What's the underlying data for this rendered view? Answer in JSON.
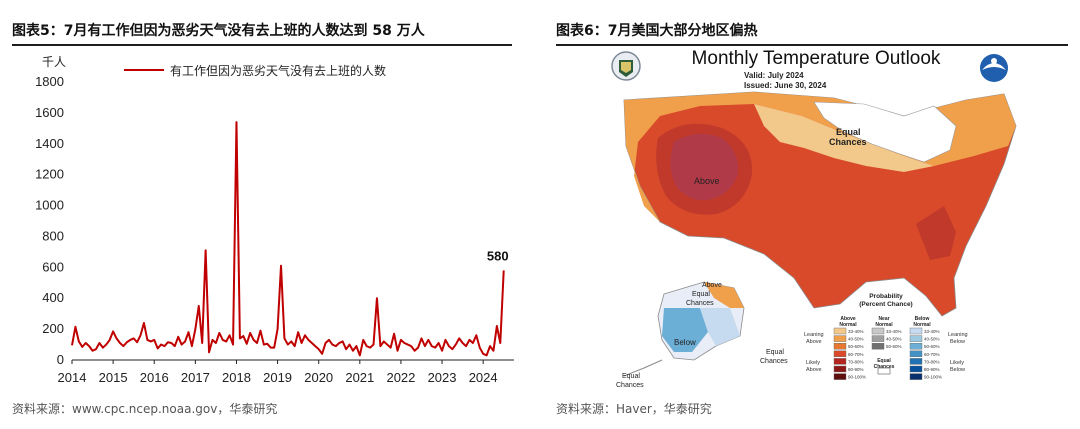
{
  "left": {
    "figure_title": "图表5：7月有工作但因为恶劣天气没有去上班的人数达到 58 万人",
    "source": "资料来源：www.cpc.ncep.noaa.gov，华泰研究"
  },
  "right": {
    "figure_title": "图表6：7月美国大部分地区偏热",
    "source": "资料来源：Haver，华泰研究",
    "map": {
      "title": "Monthly Temperature Outlook",
      "valid": "Valid:  July 2024",
      "issued": "Issued:  June 30, 2024",
      "labels": {
        "above_conus": "Above",
        "equal_chances_ne": "Equal\nChances",
        "above_ak": "Above",
        "equal_chances_ak": "Equal\nChances",
        "below_ak": "Below",
        "equal_chances_ak_sw": "Equal\nChances",
        "equal_chances_aleutian": "Equal\nChances"
      },
      "legend": {
        "title": "Probability\n(Percent Chance)",
        "col_above": "Above\nNormal",
        "col_near": "Near\nNormal",
        "col_below": "Below\nNormal",
        "leaning_above": "Leaning\nAbove",
        "likely_above": "Likely\nAbove",
        "leaning_below": "Leaning\nBelow",
        "likely_below": "Likely\nBelow",
        "equal_chances": "Equal\nChances",
        "above_bins": [
          "33-40%",
          "40-50%",
          "50-60%",
          "60-70%",
          "70-80%",
          "80-90%",
          "90-100%"
        ],
        "near_bins": [
          "33-40%",
          "40-50%",
          "50-60%"
        ],
        "below_bins": [
          "33-40%",
          "40-50%",
          "50-60%",
          "60-70%",
          "70-80%",
          "80-90%",
          "90-100%"
        ],
        "above_colors": [
          "#f2c98a",
          "#f0a04b",
          "#e77731",
          "#d84a2a",
          "#b3261f",
          "#8b1a16",
          "#5e0e0c"
        ],
        "near_colors": [
          "#c8c8c8",
          "#a0a0a0",
          "#707070"
        ],
        "below_colors": [
          "#c6dbef",
          "#9ecae1",
          "#6baed6",
          "#4292c6",
          "#2171b5",
          "#08519c",
          "#08306b"
        ]
      }
    }
  },
  "chart_data": {
    "type": "line",
    "unit_label": "千人",
    "series": [
      {
        "name": "有工作但因为恶劣天气没有去上班的人数",
        "color": "#c00000",
        "points": [
          [
            "2014-01",
            95
          ],
          [
            "2014-02",
            215
          ],
          [
            "2014-03",
            120
          ],
          [
            "2014-04",
            85
          ],
          [
            "2014-05",
            110
          ],
          [
            "2014-06",
            90
          ],
          [
            "2014-07",
            60
          ],
          [
            "2014-08",
            70
          ],
          [
            "2014-09",
            110
          ],
          [
            "2014-10",
            80
          ],
          [
            "2014-11",
            100
          ],
          [
            "2014-12",
            130
          ],
          [
            "2015-01",
            185
          ],
          [
            "2015-02",
            140
          ],
          [
            "2015-03",
            110
          ],
          [
            "2015-04",
            90
          ],
          [
            "2015-05",
            115
          ],
          [
            "2015-06",
            130
          ],
          [
            "2015-07",
            140
          ],
          [
            "2015-08",
            115
          ],
          [
            "2015-09",
            160
          ],
          [
            "2015-10",
            240
          ],
          [
            "2015-11",
            130
          ],
          [
            "2015-12",
            120
          ],
          [
            "2016-01",
            130
          ],
          [
            "2016-02",
            75
          ],
          [
            "2016-03",
            100
          ],
          [
            "2016-04",
            90
          ],
          [
            "2016-05",
            115
          ],
          [
            "2016-06",
            110
          ],
          [
            "2016-07",
            90
          ],
          [
            "2016-08",
            150
          ],
          [
            "2016-09",
            100
          ],
          [
            "2016-10",
            120
          ],
          [
            "2016-11",
            180
          ],
          [
            "2016-12",
            90
          ],
          [
            "2017-01",
            200
          ],
          [
            "2017-02",
            350
          ],
          [
            "2017-03",
            110
          ],
          [
            "2017-04",
            710
          ],
          [
            "2017-05",
            50
          ],
          [
            "2017-06",
            130
          ],
          [
            "2017-07",
            110
          ],
          [
            "2017-08",
            175
          ],
          [
            "2017-09",
            130
          ],
          [
            "2017-10",
            120
          ],
          [
            "2017-11",
            160
          ],
          [
            "2017-12",
            100
          ],
          [
            "2018-01",
            1540
          ],
          [
            "2018-02",
            140
          ],
          [
            "2018-03",
            155
          ],
          [
            "2018-04",
            105
          ],
          [
            "2018-05",
            175
          ],
          [
            "2018-06",
            130
          ],
          [
            "2018-07",
            110
          ],
          [
            "2018-08",
            190
          ],
          [
            "2018-09",
            100
          ],
          [
            "2018-10",
            105
          ],
          [
            "2018-11",
            80
          ],
          [
            "2018-12",
            80
          ],
          [
            "2019-01",
            200
          ],
          [
            "2019-02",
            610
          ],
          [
            "2019-03",
            140
          ],
          [
            "2019-04",
            100
          ],
          [
            "2019-05",
            120
          ],
          [
            "2019-06",
            90
          ],
          [
            "2019-07",
            180
          ],
          [
            "2019-08",
            110
          ],
          [
            "2019-09",
            160
          ],
          [
            "2019-10",
            130
          ],
          [
            "2019-11",
            110
          ],
          [
            "2019-12",
            90
          ],
          [
            "2020-01",
            70
          ],
          [
            "2020-02",
            40
          ],
          [
            "2020-03",
            110
          ],
          [
            "2020-04",
            130
          ],
          [
            "2020-05",
            100
          ],
          [
            "2020-06",
            90
          ],
          [
            "2020-07",
            110
          ],
          [
            "2020-08",
            120
          ],
          [
            "2020-09",
            70
          ],
          [
            "2020-10",
            100
          ],
          [
            "2020-11",
            60
          ],
          [
            "2020-12",
            90
          ],
          [
            "2021-01",
            30
          ],
          [
            "2021-02",
            130
          ],
          [
            "2021-03",
            90
          ],
          [
            "2021-04",
            80
          ],
          [
            "2021-05",
            100
          ],
          [
            "2021-06",
            400
          ],
          [
            "2021-07",
            90
          ],
          [
            "2021-08",
            120
          ],
          [
            "2021-09",
            100
          ],
          [
            "2021-10",
            80
          ],
          [
            "2021-11",
            170
          ],
          [
            "2021-12",
            60
          ],
          [
            "2022-01",
            130
          ],
          [
            "2022-02",
            110
          ],
          [
            "2022-03",
            100
          ],
          [
            "2022-04",
            90
          ],
          [
            "2022-05",
            60
          ],
          [
            "2022-06",
            80
          ],
          [
            "2022-07",
            140
          ],
          [
            "2022-08",
            90
          ],
          [
            "2022-09",
            130
          ],
          [
            "2022-10",
            90
          ],
          [
            "2022-11",
            80
          ],
          [
            "2022-12",
            110
          ],
          [
            "2023-01",
            60
          ],
          [
            "2023-02",
            130
          ],
          [
            "2023-03",
            90
          ],
          [
            "2023-04",
            70
          ],
          [
            "2023-05",
            100
          ],
          [
            "2023-06",
            140
          ],
          [
            "2023-07",
            110
          ],
          [
            "2023-08",
            90
          ],
          [
            "2023-09",
            130
          ],
          [
            "2023-10",
            110
          ],
          [
            "2023-11",
            160
          ],
          [
            "2023-12",
            80
          ],
          [
            "2024-01",
            40
          ],
          [
            "2024-02",
            30
          ],
          [
            "2024-03",
            90
          ],
          [
            "2024-04",
            60
          ],
          [
            "2024-05",
            220
          ],
          [
            "2024-06",
            110
          ],
          [
            "2024-07",
            580
          ]
        ]
      }
    ],
    "ylim": [
      0,
      1800
    ],
    "yticks": [
      0,
      200,
      400,
      600,
      800,
      1000,
      1200,
      1400,
      1600,
      1800
    ],
    "xticks": [
      "2014",
      "2015",
      "2016",
      "2017",
      "2018",
      "2019",
      "2020",
      "2021",
      "2022",
      "2023",
      "2024"
    ],
    "xlim": [
      "2014-01",
      "2024-10"
    ],
    "annotation": {
      "x": "2024-07",
      "y": 580,
      "text": "580"
    },
    "legend_position": "top"
  }
}
